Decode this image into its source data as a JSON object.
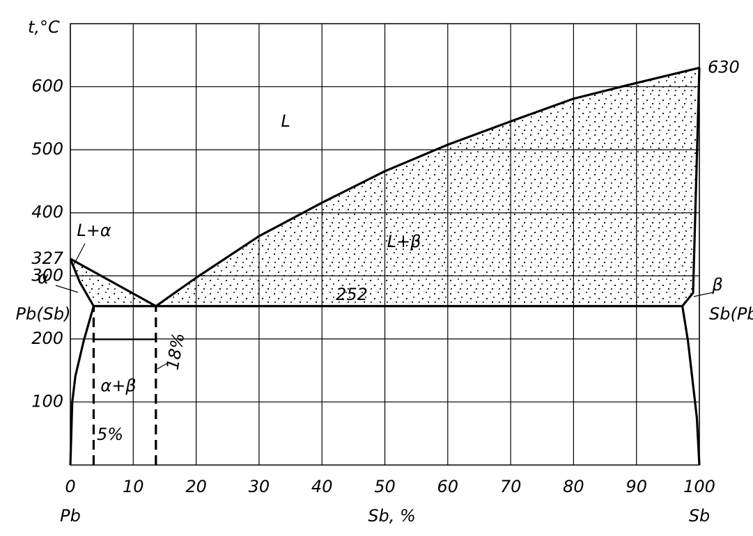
{
  "chart_data": {
    "type": "line",
    "ylabel": "t,°C",
    "xlabel": "Sb, %",
    "x_end_labels": [
      "Pb",
      "Sb"
    ],
    "xlim": [
      0,
      100
    ],
    "ylim": [
      0,
      700
    ],
    "xticks": [
      0,
      10,
      20,
      30,
      40,
      50,
      60,
      70,
      80,
      90,
      100
    ],
    "yticks": [
      100,
      200,
      300,
      400,
      500,
      600
    ],
    "marked_temperatures": [
      327,
      630
    ],
    "grid": true,
    "series": [
      {
        "color": "#000000",
        "x": [
          0,
          13.6
        ],
        "values": [
          327,
          252
        ]
      },
      {
        "color": "#000000",
        "x": [
          13.6,
          20,
          30,
          40,
          50,
          60,
          70,
          80,
          90,
          100
        ],
        "values": [
          252,
          297,
          363,
          416,
          466,
          508,
          545,
          581,
          606,
          630
        ]
      },
      {
        "color": "#000000",
        "x": [
          3.7,
          97.3
        ],
        "values": [
          252,
          252
        ]
      },
      {
        "color": "#000000",
        "x": [
          0,
          1.5,
          3.7
        ],
        "values": [
          327,
          290,
          252
        ]
      },
      {
        "color": "#000000",
        "x": [
          0,
          0.3,
          0.8,
          2.1,
          3.7
        ],
        "values": [
          0,
          100,
          141,
          196,
          252
        ]
      },
      {
        "color": "#000000",
        "x": [
          97.3,
          99,
          100
        ],
        "values": [
          252,
          273,
          630
        ]
      },
      {
        "color": "#000000",
        "x": [
          97.3,
          98.2,
          99.6,
          100
        ],
        "values": [
          252,
          196,
          75,
          0
        ]
      },
      {
        "color": "#000000",
        "style": "dashed",
        "x": [
          3.7,
          3.7
        ],
        "values": [
          0,
          252
        ]
      },
      {
        "color": "#000000",
        "style": "dashed",
        "x": [
          13.6,
          13.6
        ],
        "values": [
          0,
          252
        ]
      }
    ],
    "annotations": [
      "L",
      "L+α",
      "L+β",
      "252",
      "α+β",
      "5%",
      "18%",
      "α",
      "Pb(Sb)",
      "β",
      "Sb(Pb)"
    ]
  }
}
